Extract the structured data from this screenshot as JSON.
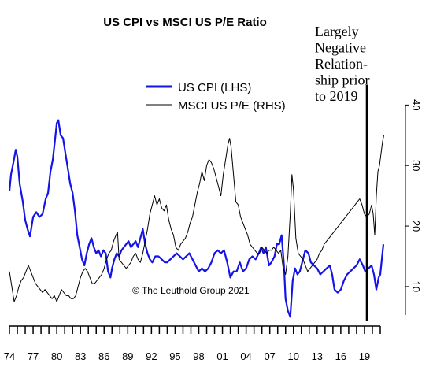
{
  "chart_data": {
    "type": "line",
    "title": "US CPI vs MSCI US P/E Ratio",
    "annotation_lines": [
      "Largely",
      "Negative",
      "Relation-",
      "ship prior",
      "to 2019"
    ],
    "copyright": "© The Leuthold Group 2021",
    "x_tick_labels": [
      "74",
      "77",
      "80",
      "83",
      "86",
      "89",
      "92",
      "95",
      "98",
      "01",
      "04",
      "07",
      "10",
      "13",
      "16",
      "19"
    ],
    "x_range": [
      1974,
      2021.5
    ],
    "y_right_ticks": [
      "10",
      "20",
      "30",
      "40"
    ],
    "y_right_range": [
      4,
      42
    ],
    "legend_placement": "top-center",
    "marker_year": 2019.3,
    "series": [
      {
        "name": "US CPI (LHS)",
        "color": "#1414e6",
        "points": [
          [
            1974.0,
            25.8
          ],
          [
            1974.2,
            28.5
          ],
          [
            1974.5,
            30.5
          ],
          [
            1974.8,
            32.6
          ],
          [
            1975.0,
            31.5
          ],
          [
            1975.3,
            27.0
          ],
          [
            1975.7,
            24.0
          ],
          [
            1976.0,
            21.0
          ],
          [
            1976.3,
            19.5
          ],
          [
            1976.6,
            18.3
          ],
          [
            1977.0,
            21.5
          ],
          [
            1977.4,
            22.3
          ],
          [
            1977.8,
            21.5
          ],
          [
            1978.2,
            22.0
          ],
          [
            1978.6,
            24.5
          ],
          [
            1978.9,
            25.5
          ],
          [
            1979.2,
            29.0
          ],
          [
            1979.5,
            31.0
          ],
          [
            1979.8,
            34.5
          ],
          [
            1980.0,
            37.0
          ],
          [
            1980.2,
            37.5
          ],
          [
            1980.5,
            35.0
          ],
          [
            1980.8,
            34.5
          ],
          [
            1981.1,
            32.0
          ],
          [
            1981.4,
            29.5
          ],
          [
            1981.7,
            27.0
          ],
          [
            1982.0,
            25.5
          ],
          [
            1982.3,
            22.5
          ],
          [
            1982.6,
            18.5
          ],
          [
            1982.9,
            16.5
          ],
          [
            1983.2,
            14.5
          ],
          [
            1983.5,
            13.5
          ],
          [
            1983.8,
            15.5
          ],
          [
            1984.1,
            17.0
          ],
          [
            1984.4,
            18.0
          ],
          [
            1984.7,
            16.5
          ],
          [
            1985.0,
            15.5
          ],
          [
            1985.3,
            16.0
          ],
          [
            1985.6,
            15.0
          ],
          [
            1985.9,
            16.0
          ],
          [
            1986.2,
            15.5
          ],
          [
            1986.5,
            12.5
          ],
          [
            1986.8,
            11.5
          ],
          [
            1987.0,
            13.0
          ],
          [
            1987.3,
            14.5
          ],
          [
            1987.6,
            15.5
          ],
          [
            1987.9,
            15.0
          ],
          [
            1988.2,
            16.0
          ],
          [
            1988.5,
            16.5
          ],
          [
            1988.8,
            17.0
          ],
          [
            1989.1,
            17.5
          ],
          [
            1989.4,
            16.5
          ],
          [
            1989.7,
            17.0
          ],
          [
            1990.0,
            17.5
          ],
          [
            1990.3,
            16.5
          ],
          [
            1990.6,
            18.0
          ],
          [
            1990.9,
            19.5
          ],
          [
            1991.2,
            17.0
          ],
          [
            1991.5,
            15.5
          ],
          [
            1991.8,
            14.5
          ],
          [
            1992.1,
            14.0
          ],
          [
            1992.5,
            15.0
          ],
          [
            1992.9,
            15.0
          ],
          [
            1993.3,
            14.5
          ],
          [
            1993.7,
            14.0
          ],
          [
            1994.0,
            14.0
          ],
          [
            1994.4,
            14.5
          ],
          [
            1994.8,
            15.0
          ],
          [
            1995.2,
            15.5
          ],
          [
            1995.6,
            15.0
          ],
          [
            1996.0,
            14.5
          ],
          [
            1996.4,
            15.0
          ],
          [
            1996.8,
            15.5
          ],
          [
            1997.2,
            14.5
          ],
          [
            1997.6,
            13.5
          ],
          [
            1998.0,
            12.5
          ],
          [
            1998.4,
            13.0
          ],
          [
            1998.8,
            12.5
          ],
          [
            1999.2,
            13.0
          ],
          [
            1999.6,
            14.0
          ],
          [
            2000.0,
            15.5
          ],
          [
            2000.4,
            16.0
          ],
          [
            2000.8,
            15.5
          ],
          [
            2001.2,
            16.0
          ],
          [
            2001.6,
            14.0
          ],
          [
            2002.0,
            11.5
          ],
          [
            2002.4,
            12.5
          ],
          [
            2002.8,
            12.5
          ],
          [
            2003.2,
            14.0
          ],
          [
            2003.6,
            12.5
          ],
          [
            2004.0,
            13.0
          ],
          [
            2004.4,
            14.5
          ],
          [
            2004.8,
            15.0
          ],
          [
            2005.2,
            14.5
          ],
          [
            2005.6,
            15.5
          ],
          [
            2005.9,
            16.5
          ],
          [
            2006.2,
            15.5
          ],
          [
            2006.5,
            16.5
          ],
          [
            2006.9,
            13.5
          ],
          [
            2007.2,
            14.0
          ],
          [
            2007.6,
            15.0
          ],
          [
            2007.9,
            17.0
          ],
          [
            2008.2,
            17.0
          ],
          [
            2008.5,
            18.5
          ],
          [
            2008.8,
            13.5
          ],
          [
            2009.0,
            8.0
          ],
          [
            2009.3,
            6.0
          ],
          [
            2009.6,
            5.0
          ],
          [
            2009.9,
            11.0
          ],
          [
            2010.2,
            13.0
          ],
          [
            2010.5,
            12.0
          ],
          [
            2010.8,
            12.5
          ],
          [
            2011.1,
            14.0
          ],
          [
            2011.5,
            16.0
          ],
          [
            2011.9,
            15.5
          ],
          [
            2012.2,
            14.0
          ],
          [
            2012.6,
            13.5
          ],
          [
            2013.0,
            13.0
          ],
          [
            2013.4,
            12.0
          ],
          [
            2013.8,
            12.5
          ],
          [
            2014.2,
            13.0
          ],
          [
            2014.6,
            13.5
          ],
          [
            2014.9,
            12.0
          ],
          [
            2015.2,
            9.5
          ],
          [
            2015.6,
            9.0
          ],
          [
            2016.0,
            9.5
          ],
          [
            2016.4,
            11.0
          ],
          [
            2016.8,
            12.0
          ],
          [
            2017.2,
            12.5
          ],
          [
            2017.6,
            13.0
          ],
          [
            2018.0,
            13.5
          ],
          [
            2018.4,
            14.5
          ],
          [
            2018.8,
            13.5
          ],
          [
            2019.1,
            12.5
          ],
          [
            2019.5,
            13.0
          ],
          [
            2019.9,
            13.5
          ],
          [
            2020.2,
            12.0
          ],
          [
            2020.5,
            9.5
          ],
          [
            2020.8,
            11.5
          ],
          [
            2021.0,
            12.0
          ],
          [
            2021.2,
            14.5
          ],
          [
            2021.4,
            17.0
          ]
        ]
      },
      {
        "name": "MSCI US P/E (RHS)",
        "color": "#000000",
        "points": [
          [
            1974.0,
            12.5
          ],
          [
            1974.3,
            10.0
          ],
          [
            1974.6,
            7.5
          ],
          [
            1974.9,
            8.5
          ],
          [
            1975.2,
            10.0
          ],
          [
            1975.5,
            11.0
          ],
          [
            1975.8,
            11.5
          ],
          [
            1976.1,
            12.5
          ],
          [
            1976.4,
            13.5
          ],
          [
            1976.7,
            12.5
          ],
          [
            1977.0,
            11.5
          ],
          [
            1977.3,
            10.5
          ],
          [
            1977.6,
            10.0
          ],
          [
            1977.9,
            9.5
          ],
          [
            1978.2,
            9.0
          ],
          [
            1978.5,
            9.5
          ],
          [
            1978.8,
            9.0
          ],
          [
            1979.1,
            8.5
          ],
          [
            1979.4,
            8.0
          ],
          [
            1979.7,
            8.5
          ],
          [
            1980.0,
            7.5
          ],
          [
            1980.3,
            8.5
          ],
          [
            1980.6,
            9.5
          ],
          [
            1980.9,
            9.0
          ],
          [
            1981.2,
            8.5
          ],
          [
            1981.5,
            8.5
          ],
          [
            1981.8,
            8.0
          ],
          [
            1982.1,
            8.0
          ],
          [
            1982.4,
            8.5
          ],
          [
            1982.7,
            10.0
          ],
          [
            1983.0,
            11.5
          ],
          [
            1983.3,
            12.5
          ],
          [
            1983.6,
            13.0
          ],
          [
            1983.9,
            12.5
          ],
          [
            1984.2,
            11.5
          ],
          [
            1984.5,
            10.5
          ],
          [
            1984.8,
            10.5
          ],
          [
            1985.1,
            11.0
          ],
          [
            1985.4,
            11.5
          ],
          [
            1985.7,
            12.0
          ],
          [
            1986.0,
            13.0
          ],
          [
            1986.3,
            14.5
          ],
          [
            1986.6,
            15.5
          ],
          [
            1986.9,
            16.0
          ],
          [
            1987.2,
            17.5
          ],
          [
            1987.5,
            18.5
          ],
          [
            1987.7,
            19.0
          ],
          [
            1987.9,
            14.5
          ],
          [
            1988.2,
            14.0
          ],
          [
            1988.5,
            13.5
          ],
          [
            1988.8,
            13.0
          ],
          [
            1989.1,
            13.5
          ],
          [
            1989.4,
            14.0
          ],
          [
            1989.7,
            15.0
          ],
          [
            1990.0,
            15.5
          ],
          [
            1990.3,
            14.5
          ],
          [
            1990.6,
            14.0
          ],
          [
            1990.9,
            15.5
          ],
          [
            1991.2,
            17.5
          ],
          [
            1991.5,
            19.5
          ],
          [
            1991.8,
            22.0
          ],
          [
            1992.1,
            23.5
          ],
          [
            1992.4,
            25.0
          ],
          [
            1992.7,
            23.5
          ],
          [
            1993.0,
            24.5
          ],
          [
            1993.3,
            23.0
          ],
          [
            1993.6,
            22.5
          ],
          [
            1993.9,
            23.5
          ],
          [
            1994.2,
            21.0
          ],
          [
            1994.5,
            19.5
          ],
          [
            1994.8,
            18.5
          ],
          [
            1995.1,
            16.5
          ],
          [
            1995.4,
            16.0
          ],
          [
            1995.7,
            17.0
          ],
          [
            1996.0,
            17.5
          ],
          [
            1996.3,
            18.0
          ],
          [
            1996.6,
            19.0
          ],
          [
            1996.9,
            20.5
          ],
          [
            1997.2,
            21.5
          ],
          [
            1997.5,
            23.5
          ],
          [
            1997.8,
            25.5
          ],
          [
            1998.1,
            27.0
          ],
          [
            1998.4,
            29.0
          ],
          [
            1998.7,
            27.5
          ],
          [
            1999.0,
            30.0
          ],
          [
            1999.3,
            31.0
          ],
          [
            1999.6,
            30.5
          ],
          [
            1999.9,
            29.5
          ],
          [
            2000.2,
            28.0
          ],
          [
            2000.5,
            26.5
          ],
          [
            2000.8,
            25.0
          ],
          [
            2001.1,
            28.5
          ],
          [
            2001.4,
            31.0
          ],
          [
            2001.7,
            33.5
          ],
          [
            2001.9,
            34.5
          ],
          [
            2002.1,
            33.0
          ],
          [
            2002.4,
            28.5
          ],
          [
            2002.7,
            24.0
          ],
          [
            2003.0,
            23.5
          ],
          [
            2003.3,
            21.5
          ],
          [
            2003.6,
            20.5
          ],
          [
            2003.9,
            19.5
          ],
          [
            2004.2,
            18.5
          ],
          [
            2004.5,
            17.0
          ],
          [
            2004.8,
            16.5
          ],
          [
            2005.1,
            16.0
          ],
          [
            2005.4,
            15.5
          ],
          [
            2005.7,
            15.5
          ],
          [
            2006.0,
            16.5
          ],
          [
            2006.3,
            16.0
          ],
          [
            2006.6,
            15.5
          ],
          [
            2006.9,
            16.0
          ],
          [
            2007.2,
            16.0
          ],
          [
            2007.5,
            16.5
          ],
          [
            2007.8,
            16.0
          ],
          [
            2008.1,
            15.5
          ],
          [
            2008.4,
            16.0
          ],
          [
            2008.7,
            13.0
          ],
          [
            2009.0,
            12.0
          ],
          [
            2009.3,
            15.0
          ],
          [
            2009.6,
            22.0
          ],
          [
            2009.8,
            28.5
          ],
          [
            2010.0,
            26.0
          ],
          [
            2010.3,
            18.0
          ],
          [
            2010.6,
            15.5
          ],
          [
            2010.9,
            15.0
          ],
          [
            2011.2,
            14.5
          ],
          [
            2011.5,
            13.5
          ],
          [
            2011.8,
            12.5
          ],
          [
            2012.1,
            13.0
          ],
          [
            2012.4,
            13.5
          ],
          [
            2012.7,
            14.0
          ],
          [
            2013.0,
            14.5
          ],
          [
            2013.3,
            15.5
          ],
          [
            2013.6,
            16.0
          ],
          [
            2013.9,
            17.0
          ],
          [
            2014.2,
            17.5
          ],
          [
            2014.5,
            18.0
          ],
          [
            2014.8,
            18.5
          ],
          [
            2015.1,
            19.0
          ],
          [
            2015.4,
            19.5
          ],
          [
            2015.7,
            20.0
          ],
          [
            2016.0,
            20.5
          ],
          [
            2016.3,
            21.0
          ],
          [
            2016.6,
            21.5
          ],
          [
            2016.9,
            22.0
          ],
          [
            2017.2,
            22.5
          ],
          [
            2017.5,
            23.0
          ],
          [
            2017.8,
            23.5
          ],
          [
            2018.1,
            24.0
          ],
          [
            2018.4,
            24.5
          ],
          [
            2018.7,
            23.5
          ],
          [
            2019.0,
            22.0
          ],
          [
            2019.3,
            21.5
          ],
          [
            2019.6,
            22.0
          ],
          [
            2019.9,
            23.5
          ],
          [
            2020.1,
            22.0
          ],
          [
            2020.3,
            18.5
          ],
          [
            2020.5,
            25.0
          ],
          [
            2020.7,
            29.0
          ],
          [
            2020.9,
            30.0
          ],
          [
            2021.1,
            32.0
          ],
          [
            2021.3,
            34.0
          ],
          [
            2021.45,
            35.0
          ]
        ]
      }
    ]
  }
}
